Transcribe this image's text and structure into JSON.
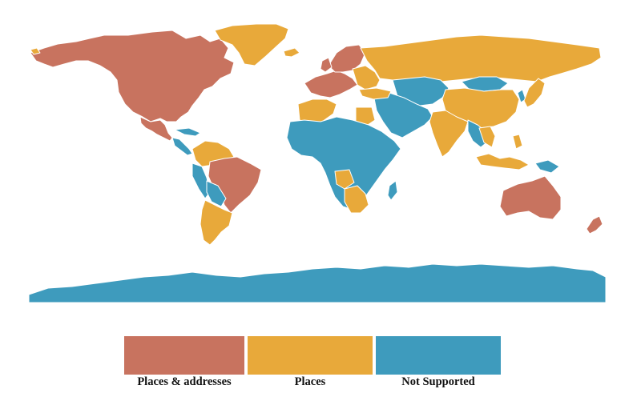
{
  "colors": {
    "places_addresses": "#c8735f",
    "places": "#e8a93a",
    "not_supported": "#3e9bbd"
  },
  "legend": [
    {
      "label": "Places & addresses",
      "color": "#c8735f"
    },
    {
      "label": "Places",
      "color": "#e8a93a"
    },
    {
      "label": "Not Supported",
      "color": "#3e9bbd"
    }
  ]
}
